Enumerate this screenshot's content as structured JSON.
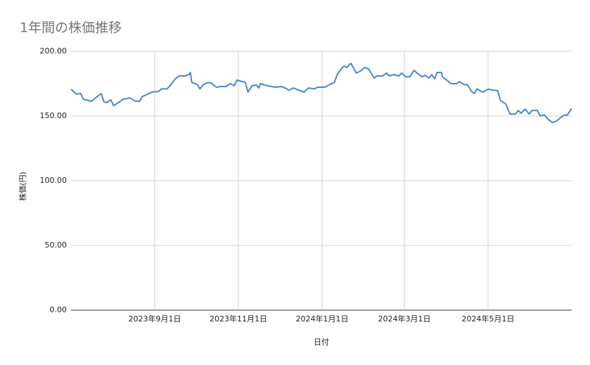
{
  "chart_data": {
    "type": "line",
    "title": "1年間の株価推移",
    "x_label": "日付",
    "y_label": "株価(円)",
    "color": "#4a86d4",
    "grid": true,
    "xlim": [
      "2023-07-02",
      "2024-07-01"
    ],
    "xticks": [
      {
        "value": "2023-09-01",
        "label": "2023年9月1日"
      },
      {
        "value": "2023-11-01",
        "label": "2023年11月1日"
      },
      {
        "value": "2024-01-01",
        "label": "2024年1月1日"
      },
      {
        "value": "2024-03-01",
        "label": "2024年3月1日"
      },
      {
        "value": "2024-05-01",
        "label": "2024年5月1日"
      }
    ],
    "ylim": [
      0,
      200
    ],
    "yticks": [
      {
        "value": 0,
        "label": "0.00"
      },
      {
        "value": 50,
        "label": "50.00"
      },
      {
        "value": 100,
        "label": "100.00"
      },
      {
        "value": 150,
        "label": "150.00"
      },
      {
        "value": 200,
        "label": "200.00"
      }
    ],
    "x": [
      "2023-07-02",
      "2023-07-06",
      "2023-07-09",
      "2023-07-11",
      "2023-07-17",
      "2023-07-21",
      "2023-07-24",
      "2023-07-26",
      "2023-07-28",
      "2023-07-31",
      "2023-08-02",
      "2023-08-05",
      "2023-08-09",
      "2023-08-14",
      "2023-08-18",
      "2023-08-21",
      "2023-08-23",
      "2023-08-27",
      "2023-08-30",
      "2023-09-04",
      "2023-09-06",
      "2023-09-10",
      "2023-09-13",
      "2023-09-16",
      "2023-09-19",
      "2023-09-23",
      "2023-09-26",
      "2023-09-27",
      "2023-09-28",
      "2023-10-02",
      "2023-10-04",
      "2023-10-06",
      "2023-10-10",
      "2023-10-12",
      "2023-10-16",
      "2023-10-19",
      "2023-10-23",
      "2023-10-26",
      "2023-10-29",
      "2023-10-31",
      "2023-11-04",
      "2023-11-06",
      "2023-11-08",
      "2023-11-11",
      "2023-11-14",
      "2023-11-16",
      "2023-11-17",
      "2023-11-22",
      "2023-11-28",
      "2023-12-02",
      "2023-12-05",
      "2023-12-08",
      "2023-12-11",
      "2023-12-16",
      "2023-12-19",
      "2023-12-22",
      "2023-12-26",
      "2023-12-29",
      "2024-01-03",
      "2024-01-07",
      "2024-01-10",
      "2024-01-12",
      "2024-01-15",
      "2024-01-17",
      "2024-01-19",
      "2024-01-22",
      "2024-01-26",
      "2024-01-29",
      "2024-02-01",
      "2024-02-04",
      "2024-02-08",
      "2024-02-10",
      "2024-02-14",
      "2024-02-17",
      "2024-02-19",
      "2024-02-22",
      "2024-02-26",
      "2024-02-28",
      "2024-03-02",
      "2024-03-05",
      "2024-03-08",
      "2024-03-11",
      "2024-03-14",
      "2024-03-16",
      "2024-03-19",
      "2024-03-21",
      "2024-03-23",
      "2024-03-25",
      "2024-03-28",
      "2024-03-29",
      "2024-04-01",
      "2024-04-04",
      "2024-04-08",
      "2024-04-10",
      "2024-04-13",
      "2024-04-16",
      "2024-04-19",
      "2024-04-21",
      "2024-04-23",
      "2024-04-27",
      "2024-05-01",
      "2024-05-05",
      "2024-05-08",
      "2024-05-10",
      "2024-05-14",
      "2024-05-17",
      "2024-05-21",
      "2024-05-23",
      "2024-05-25",
      "2024-05-28",
      "2024-05-31",
      "2024-06-02",
      "2024-06-06",
      "2024-06-08",
      "2024-06-11",
      "2024-06-14",
      "2024-06-17",
      "2024-06-20",
      "2024-06-25",
      "2024-06-28",
      "2024-07-01"
    ],
    "values": [
      170.7,
      167,
      167.4,
      163,
      161.4,
      165,
      167.4,
      161,
      160.3,
      162.5,
      158,
      160,
      163,
      164,
      161.4,
      161.4,
      165,
      167,
      168.5,
      169,
      171,
      171,
      174.5,
      178.8,
      181,
      181,
      182,
      183.7,
      176,
      174.5,
      171,
      174,
      176,
      175.5,
      172.3,
      172.8,
      172.8,
      175,
      173.4,
      177.7,
      176.6,
      176.2,
      168.5,
      173.4,
      174,
      171.7,
      175,
      173.4,
      172.3,
      172.8,
      171.7,
      170,
      171.7,
      169.6,
      168.5,
      171.7,
      171,
      172.3,
      172.3,
      174.5,
      176,
      182,
      186.4,
      188.6,
      187.5,
      190.8,
      183.2,
      184.8,
      187.5,
      186.4,
      179.3,
      181,
      181,
      183.2,
      181,
      182,
      181,
      183.2,
      180.4,
      180.4,
      185.3,
      182.6,
      180.4,
      181.5,
      179.3,
      182,
      178.8,
      183.7,
      183.7,
      180,
      177.7,
      175,
      175,
      176.6,
      174.5,
      174,
      169,
      167.4,
      171,
      168.5,
      170.7,
      170,
      169.6,
      162,
      159.2,
      151.6,
      151.6,
      154.3,
      152.2,
      155.4,
      151.6,
      154.3,
      154.3,
      150,
      151,
      147.3,
      145,
      146.2,
      150.5,
      151,
      156
    ]
  }
}
